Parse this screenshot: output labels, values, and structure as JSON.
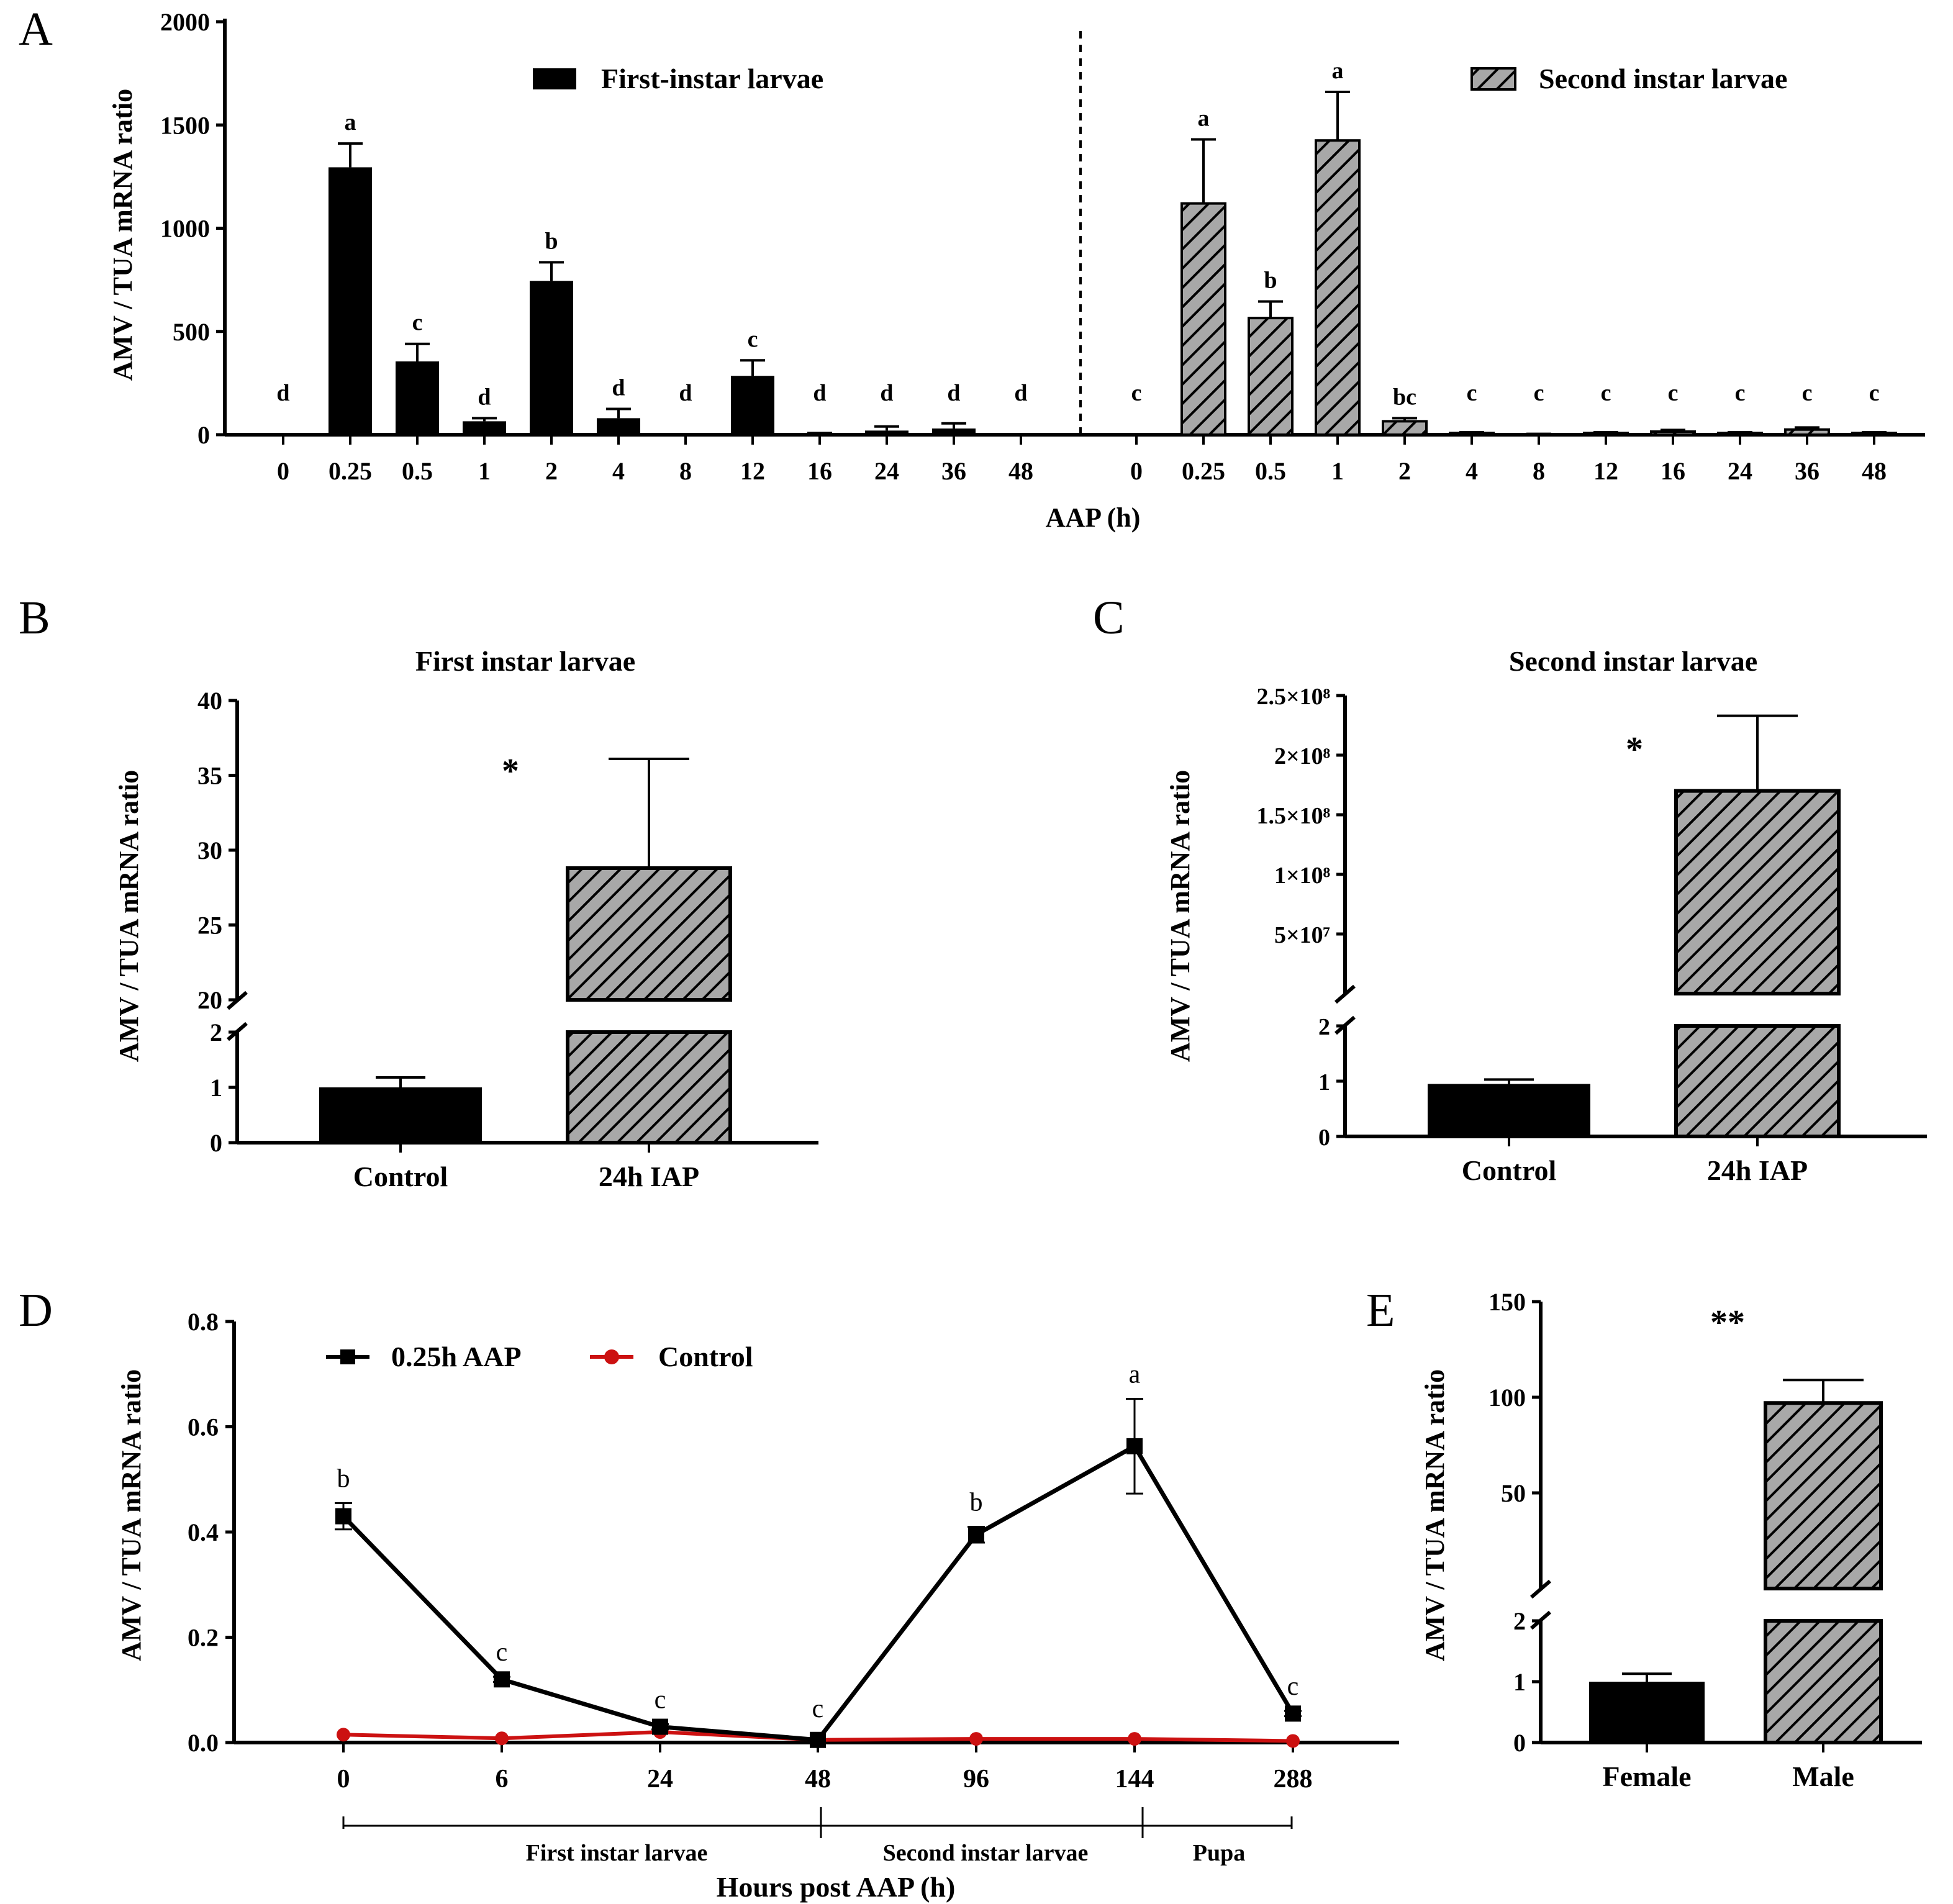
{
  "colors": {
    "black": "#000000",
    "hatch_bg": "#a8a8a8",
    "control_red": "#cc1111"
  },
  "ylabel": "AMV / TUA mRNA ratio",
  "chart_data": [
    {
      "panel": "A",
      "type": "bar",
      "title": "",
      "xlabel": "AAP (h)",
      "ylabel": "AMV / TUA mRNA ratio",
      "ylim": [
        0,
        2000
      ],
      "yticks": [
        "0",
        "500",
        "1000",
        "1500",
        "2000"
      ],
      "categories": [
        "0",
        "0.25",
        "0.5",
        "1",
        "2",
        "4",
        "8",
        "12",
        "16",
        "24",
        "36",
        "48"
      ],
      "series": [
        {
          "name": "First-instar larvae",
          "style": "solid",
          "values": [
            0,
            1295,
            355,
            65,
            745,
            80,
            0,
            285,
            5,
            20,
            30,
            0
          ],
          "errors": [
            0,
            115,
            85,
            15,
            90,
            45,
            0,
            75,
            3,
            20,
            25,
            0
          ],
          "letters": [
            "d",
            "a",
            "c",
            "d",
            "b",
            "d",
            "d",
            "c",
            "d",
            "d",
            "d",
            "d"
          ]
        },
        {
          "name": "Second instar larvae",
          "style": "hatched",
          "values": [
            0,
            1120,
            565,
            1425,
            65,
            8,
            2,
            8,
            15,
            8,
            25,
            8
          ],
          "errors": [
            0,
            310,
            80,
            235,
            15,
            4,
            2,
            4,
            8,
            4,
            10,
            4
          ],
          "letters": [
            "c",
            "a",
            "b",
            "a",
            "bc",
            "c",
            "c",
            "c",
            "c",
            "c",
            "c",
            "c"
          ]
        }
      ]
    },
    {
      "panel": "B",
      "type": "bar",
      "title": "First instar larvae",
      "ylabel": "AMV / TUA mRNA ratio",
      "axis_break": true,
      "lower_ylim": [
        0,
        2
      ],
      "upper_ylim": [
        20,
        40
      ],
      "lower_ticks": [
        "0",
        "1",
        "2"
      ],
      "upper_ticks": [
        "20",
        "25",
        "30",
        "35",
        "40"
      ],
      "categories": [
        "Control",
        "24h IAP"
      ],
      "values": [
        1.0,
        28.8
      ],
      "errors": [
        0.18,
        7.3
      ],
      "significance": "*"
    },
    {
      "panel": "C",
      "type": "bar",
      "title": "Second instar larvae",
      "ylabel": "AMV / TUA mRNA ratio",
      "axis_break": true,
      "lower_ylim": [
        0,
        2
      ],
      "upper_ylim": [
        0,
        250000000
      ],
      "lower_ticks": [
        "0",
        "1",
        "2"
      ],
      "upper_ticks": [
        "5×10⁷",
        "1×10⁸",
        "1.5×10⁸",
        "2×10⁸",
        "2.5×10⁸"
      ],
      "categories": [
        "Control",
        "24h IAP"
      ],
      "values": [
        0.95,
        170000000
      ],
      "errors": [
        0.08,
        63000000
      ],
      "significance": "*"
    },
    {
      "panel": "D",
      "type": "line",
      "title": "",
      "xlabel": "Hours post AAP (h)",
      "ylabel": "AMV / TUA mRNA ratio",
      "ylim": [
        0,
        0.8
      ],
      "yticks": [
        "0.0",
        "0.2",
        "0.4",
        "0.6",
        "0.8"
      ],
      "x": [
        "0",
        "6",
        "24",
        "48",
        "96",
        "144",
        "288"
      ],
      "series": [
        {
          "name": "0.25h AAP",
          "color": "#000000",
          "values": [
            0.43,
            0.12,
            0.03,
            0.005,
            0.395,
            0.563,
            0.055
          ],
          "errors": [
            0.025,
            0.005,
            0.005,
            0.002,
            0.015,
            0.09,
            0.005
          ],
          "letters": [
            "b",
            "c",
            "c",
            "c",
            "b",
            "a",
            "c"
          ]
        },
        {
          "name": "Control",
          "color": "#cc1111",
          "values": [
            0.015,
            0.008,
            0.02,
            0.005,
            0.007,
            0.007,
            0.003
          ]
        }
      ],
      "stages": [
        "First instar larvae",
        "Second instar larvae",
        "Pupa"
      ]
    },
    {
      "panel": "E",
      "type": "bar",
      "title": "",
      "ylabel": "AMV / TUA mRNA ratio",
      "axis_break": true,
      "lower_ylim": [
        0,
        2
      ],
      "upper_ylim": [
        0,
        150
      ],
      "lower_ticks": [
        "0",
        "1",
        "2"
      ],
      "upper_ticks": [
        "50",
        "100",
        "150"
      ],
      "categories": [
        "Female",
        "Male"
      ],
      "values": [
        1.0,
        97
      ],
      "errors": [
        0.13,
        12
      ],
      "significance": "**"
    }
  ]
}
